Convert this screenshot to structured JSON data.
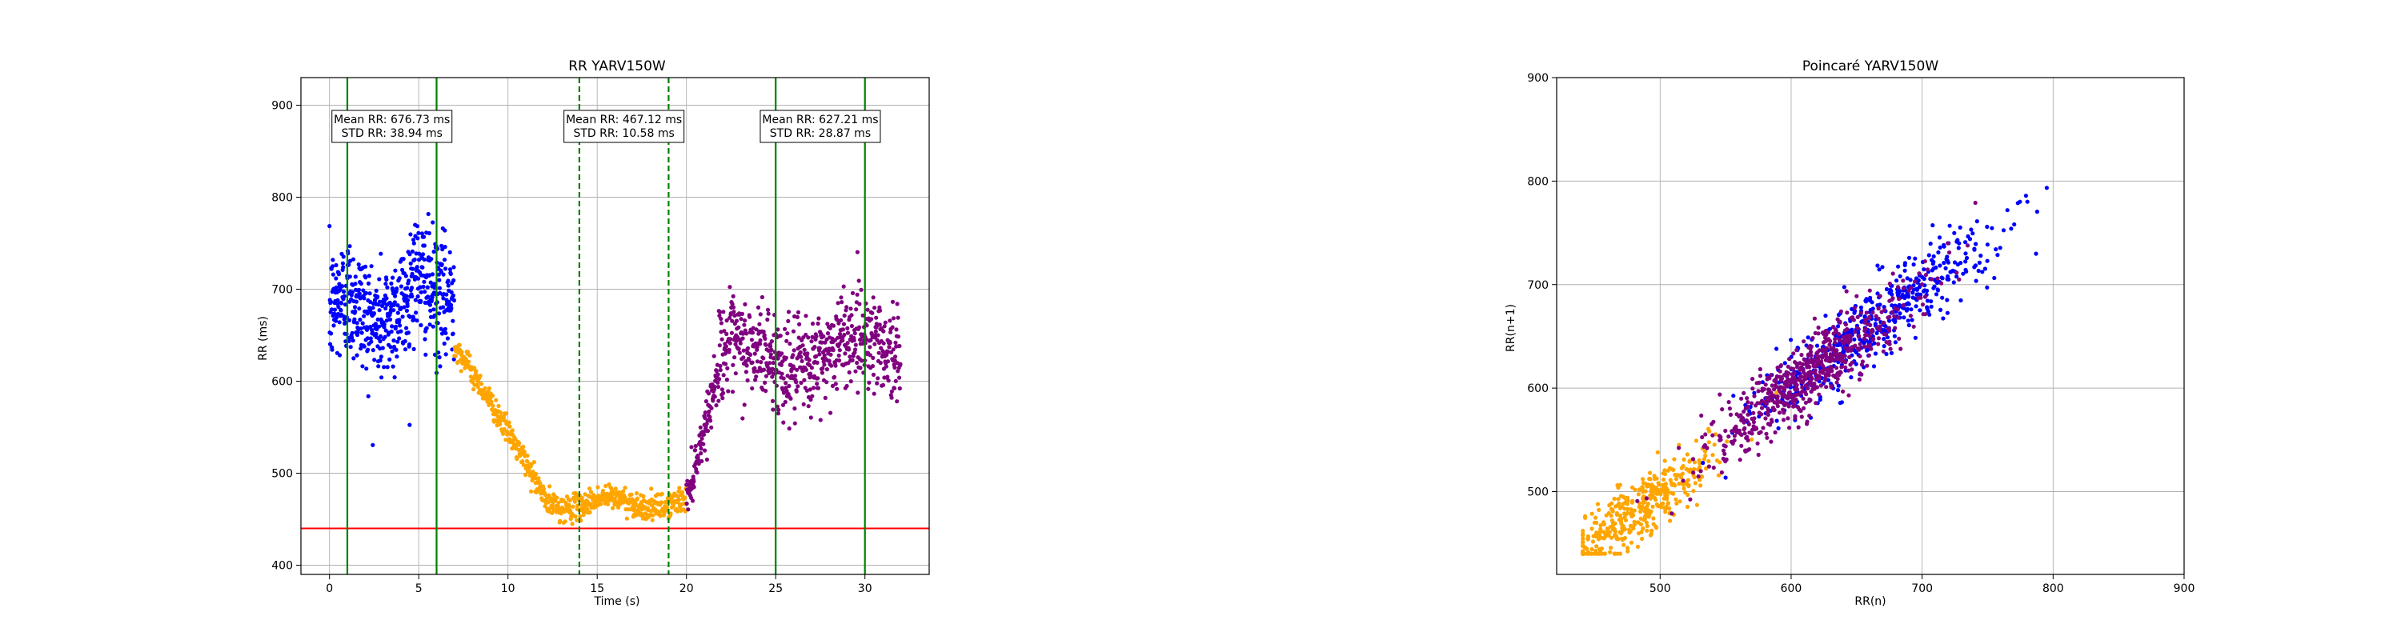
{
  "chart_data": [
    {
      "type": "scatter",
      "title": "RR YARV150W",
      "xlabel": "Time (s)",
      "ylabel": "RR (ms)",
      "xlim": [
        -1.6,
        33.6
      ],
      "ylim": [
        390,
        930
      ],
      "xticks": [
        0,
        5,
        10,
        15,
        20,
        25,
        30
      ],
      "yticks": [
        400,
        500,
        600,
        700,
        800,
        900
      ],
      "grid": true,
      "legend": "none",
      "colors": {
        "blue": "#0000ff",
        "orange": "#ffa500",
        "purple": "#800080",
        "green": "#008000",
        "red": "#ff0000"
      },
      "series": [
        {
          "color": "#0000ff",
          "x_range": [
            0,
            7
          ],
          "mean": 676.73,
          "std": 38.94,
          "shape": "flat",
          "count": 560
        },
        {
          "color": "#ffa500",
          "x_range": [
            7,
            20
          ],
          "mean": 500,
          "shape": "decay",
          "start": 640,
          "end": 468,
          "count": 620
        },
        {
          "color": "#800080",
          "x_range": [
            20,
            32
          ],
          "mean": 627.21,
          "std": 28.87,
          "shape": "rise",
          "start": 470,
          "count": 760
        }
      ],
      "threshold_line": {
        "y": 440,
        "color": "#ff0000"
      },
      "vlines": [
        {
          "x": 1,
          "style": "solid",
          "color": "#008000"
        },
        {
          "x": 6,
          "style": "solid",
          "color": "#008000"
        },
        {
          "x": 14,
          "style": "dashed",
          "color": "#008000"
        },
        {
          "x": 19,
          "style": "dashed",
          "color": "#008000"
        },
        {
          "x": 25,
          "style": "solid",
          "color": "#008000"
        },
        {
          "x": 30,
          "style": "solid",
          "color": "#008000"
        }
      ],
      "annotations": [
        {
          "x": 1,
          "x2": 6,
          "line1": "Mean RR: 676.73 ms",
          "line2": "STD RR: 38.94 ms"
        },
        {
          "x": 14,
          "x2": 19,
          "line1": "Mean RR: 467.12 ms",
          "line2": "STD RR: 10.58 ms"
        },
        {
          "x": 25,
          "x2": 30,
          "line1": "Mean RR: 627.21 ms",
          "line2": "STD RR: 28.87 ms"
        }
      ]
    },
    {
      "type": "scatter",
      "title": "Poincaré YARV150W",
      "xlabel": "RR(n)",
      "ylabel": "RR(n+1)",
      "xlim": [
        421,
        900
      ],
      "ylim": [
        420,
        900
      ],
      "xticks": [
        500,
        600,
        700,
        800,
        900
      ],
      "yticks": [
        500,
        600,
        700,
        800,
        900
      ],
      "grid": true,
      "legend": "none",
      "series": [
        {
          "color": "#ffa500",
          "center": [
            480,
            480
          ],
          "spread": 35,
          "count": 450
        },
        {
          "color": "#0000ff",
          "center": [
            665,
            665
          ],
          "spread": 45,
          "count": 500
        },
        {
          "color": "#800080",
          "center": [
            615,
            615
          ],
          "spread": 40,
          "count": 650
        }
      ]
    }
  ]
}
